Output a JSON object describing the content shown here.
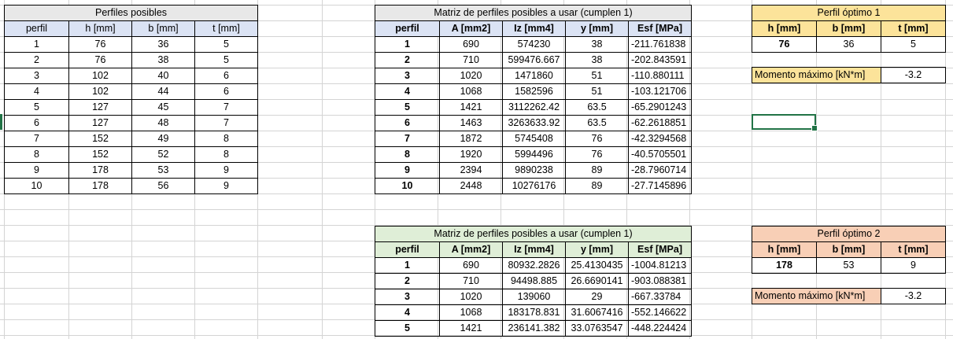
{
  "perfiles_posibles": {
    "title": "Perfiles posibles",
    "headers": [
      "perfil",
      "h [mm]",
      "b [mm]",
      "t [mm]"
    ],
    "rows": [
      [
        "1",
        "76",
        "36",
        "5"
      ],
      [
        "2",
        "76",
        "38",
        "5"
      ],
      [
        "3",
        "102",
        "40",
        "6"
      ],
      [
        "4",
        "102",
        "44",
        "6"
      ],
      [
        "5",
        "127",
        "45",
        "7"
      ],
      [
        "6",
        "127",
        "48",
        "7"
      ],
      [
        "7",
        "152",
        "49",
        "8"
      ],
      [
        "8",
        "152",
        "52",
        "8"
      ],
      [
        "9",
        "178",
        "53",
        "9"
      ],
      [
        "10",
        "178",
        "56",
        "9"
      ]
    ]
  },
  "matriz_1": {
    "title": "Matriz de perfiles posibles a usar (cumplen 1)",
    "headers": [
      "perfil",
      "A [mm2]",
      "Iz [mm4]",
      "y [mm]",
      "Esf [MPa]"
    ],
    "rows": [
      [
        "1",
        "690",
        "574230",
        "38",
        "-211.761838"
      ],
      [
        "2",
        "710",
        "599476.667",
        "38",
        "-202.843591"
      ],
      [
        "3",
        "1020",
        "1471860",
        "51",
        "-110.880111"
      ],
      [
        "4",
        "1068",
        "1582596",
        "51",
        "-103.121706"
      ],
      [
        "5",
        "1421",
        "3112262.42",
        "63.5",
        "-65.2901243"
      ],
      [
        "6",
        "1463",
        "3263633.92",
        "63.5",
        "-62.2618851"
      ],
      [
        "7",
        "1872",
        "5745408",
        "76",
        "-42.3294568"
      ],
      [
        "8",
        "1920",
        "5994496",
        "76",
        "-40.5705501"
      ],
      [
        "9",
        "2394",
        "9890238",
        "89",
        "-28.7960714"
      ],
      [
        "10",
        "2448",
        "10276176",
        "89",
        "-27.7145896"
      ]
    ]
  },
  "matriz_2": {
    "title": "Matriz de perfiles posibles a usar (cumplen 1)",
    "headers": [
      "perfil",
      "A [mm2]",
      "Iz [mm4]",
      "y [mm]",
      "Esf [MPa]"
    ],
    "rows": [
      [
        "1",
        "690",
        "80932.2826",
        "25.4130435",
        "-1004.81213"
      ],
      [
        "2",
        "710",
        "94498.885",
        "26.6690141",
        "-903.088381"
      ],
      [
        "3",
        "1020",
        "139060",
        "29",
        "-667.33784"
      ],
      [
        "4",
        "1068",
        "183178.831",
        "31.6067416",
        "-552.146622"
      ],
      [
        "5",
        "1421",
        "236141.382",
        "33.0763547",
        "-448.224424"
      ]
    ]
  },
  "optimo_1": {
    "title": "Perfil óptimo 1",
    "headers": [
      "h [mm]",
      "b [mm]",
      "t [mm]"
    ],
    "values": [
      "76",
      "36",
      "5"
    ],
    "momento_label": "Momento máximo [kN*m]",
    "momento_value": "-3.2"
  },
  "optimo_2": {
    "title": "Perfil óptimo 2",
    "headers": [
      "h [mm]",
      "b [mm]",
      "t [mm]"
    ],
    "values": [
      "178",
      "53",
      "9"
    ],
    "momento_label": "Momento máximo [kN*m]",
    "momento_value": "-3.2"
  },
  "colors": {
    "gridline": "#d4d4d4",
    "selection": "#217346",
    "header_blue": "#dbe3f4",
    "header_green": "#dfeed7",
    "header_yellow": "#fce39a",
    "header_orange": "#f8cfb6"
  }
}
